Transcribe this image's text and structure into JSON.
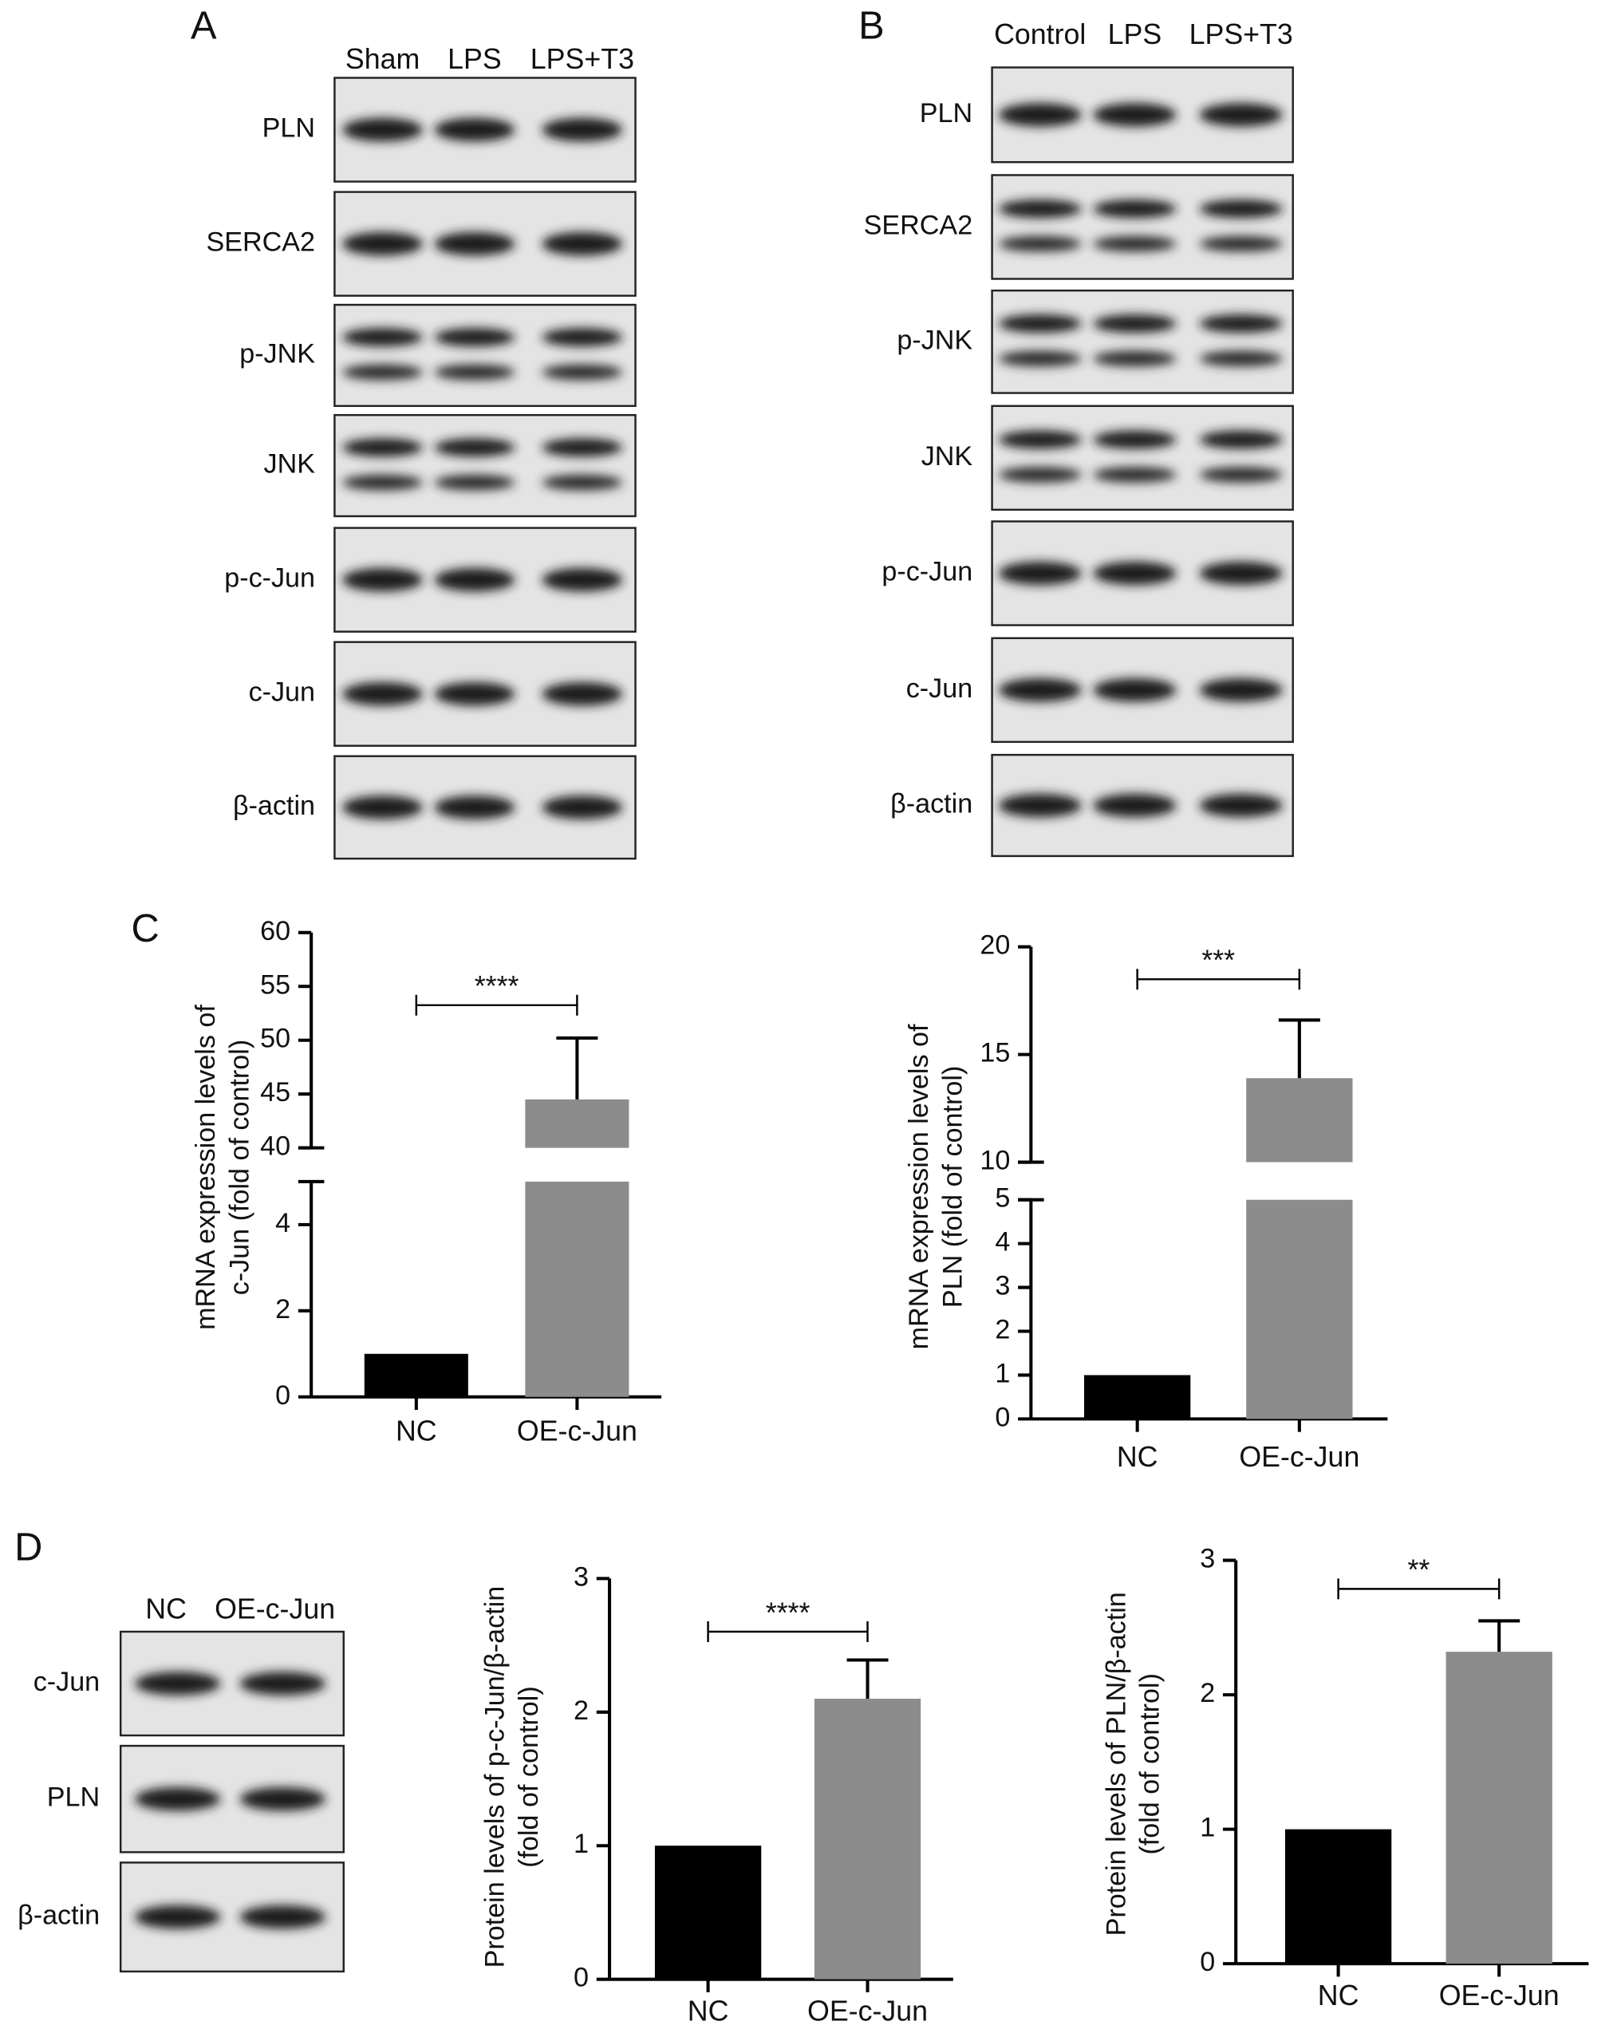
{
  "panel_labels": [
    "A",
    "B",
    "C",
    "D"
  ],
  "blots": [
    {
      "lanes": [
        "Sham",
        "LPS",
        "LPS+T3"
      ],
      "rows": [
        "PLN",
        "SERCA2",
        "p-JNK",
        "JNK",
        "p-c-Jun",
        "c-Jun",
        "β-actin"
      ]
    },
    {
      "lanes": [
        "Control",
        "LPS",
        "LPS+T3"
      ],
      "rows": [
        "PLN",
        "SERCA2",
        "p-JNK",
        "JNK",
        "p-c-Jun",
        "c-Jun",
        "β-actin"
      ]
    },
    {
      "lanes": [
        "NC",
        "OE-c-Jun"
      ],
      "rows": [
        "c-Jun",
        "PLN",
        "β-actin"
      ]
    }
  ],
  "chart_data": [
    {
      "type": "bar",
      "ylabel": [
        "mRNA expression levels of",
        "c-Jun (fold of control)"
      ],
      "categories": [
        "NC",
        "OE-c-Jun"
      ],
      "values": [
        1,
        44.5
      ],
      "errors": [
        null,
        5.7
      ],
      "colors": [
        "#000000",
        "#8c8c8c"
      ],
      "ylim": [
        0,
        60
      ],
      "ybreak": [
        5,
        40
      ],
      "yticks": [
        0,
        2,
        4,
        40,
        45,
        50,
        55,
        60
      ],
      "annotation": "****"
    },
    {
      "type": "bar",
      "ylabel": [
        "mRNA expression levels of",
        "PLN (fold of control)"
      ],
      "categories": [
        "NC",
        "OE-c-Jun"
      ],
      "values": [
        1,
        13.9
      ],
      "errors": [
        null,
        2.7
      ],
      "colors": [
        "#000000",
        "#8c8c8c"
      ],
      "ylim": [
        0,
        20
      ],
      "ybreak": [
        5,
        10
      ],
      "yticks": [
        0,
        1,
        2,
        3,
        4,
        5,
        10,
        15,
        20
      ],
      "annotation": "***"
    },
    {
      "type": "bar",
      "ylabel": [
        "Protein levels of p-c-Jun/β-actin",
        "(fold of control)"
      ],
      "categories": [
        "NC",
        "OE-c-Jun"
      ],
      "values": [
        1,
        2.1
      ],
      "errors": [
        null,
        0.29
      ],
      "colors": [
        "#000000",
        "#8c8c8c"
      ],
      "ylim": [
        0,
        3
      ],
      "yticks": [
        0,
        1,
        2,
        3
      ],
      "annotation": "****"
    },
    {
      "type": "bar",
      "ylabel": [
        "Protein levels of PLN/β-actin",
        "(fold of control)"
      ],
      "categories": [
        "NC",
        "OE-c-Jun"
      ],
      "values": [
        1,
        2.32
      ],
      "errors": [
        null,
        0.23
      ],
      "colors": [
        "#000000",
        "#8c8c8c"
      ],
      "ylim": [
        0,
        3
      ],
      "yticks": [
        0,
        1,
        2,
        3
      ],
      "annotation": "**"
    }
  ]
}
